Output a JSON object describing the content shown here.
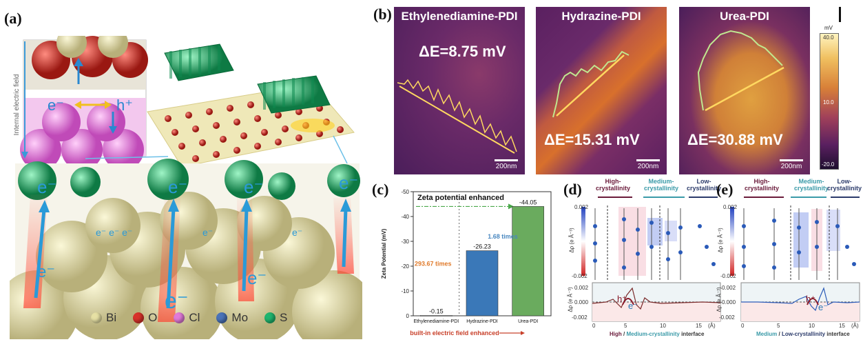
{
  "panel_labels": {
    "a": "(a)",
    "b": "(b)",
    "c": "(c)",
    "d": "(d)",
    "e": "(e)"
  },
  "panel_a": {
    "field_label": "Internal electric field",
    "electron": "e⁻",
    "hole": "h⁺",
    "legend": [
      {
        "symbol": "Bi",
        "color": "#e6e0a4"
      },
      {
        "symbol": "O",
        "color": "#d8322a"
      },
      {
        "symbol": "Cl",
        "color": "#e07ad8"
      },
      {
        "symbol": "Mo",
        "color": "#4a73b8"
      },
      {
        "symbol": "S",
        "color": "#1fb56e"
      }
    ]
  },
  "panel_b": {
    "images": [
      {
        "title": "Ethylenediamine-PDI",
        "delta": "ΔE=8.75 mV",
        "scalebar": "200nm"
      },
      {
        "title": "Hydrazine-PDI",
        "delta": "ΔE=15.31 mV",
        "scalebar": "200nm"
      },
      {
        "title": "Urea-PDI",
        "delta": "ΔE=30.88 mV",
        "scalebar": "200nm"
      }
    ],
    "colorbar": {
      "unit": "mV",
      "max": "40.0",
      "mid": "10.0",
      "min": "-20.0"
    }
  },
  "chart_data": {
    "type": "bar",
    "title": "Zeta potential enhanced",
    "ylabel": "Zeta Potential (mV)",
    "xlabel": "built-in electric field enhanced",
    "categories": [
      "Ethylenediamine-PDI",
      "Hydrazine-PDI",
      "Urea-PDI"
    ],
    "values": [
      -0.15,
      -26.23,
      -44.05
    ],
    "value_labels": [
      "-0.15",
      "-26.23",
      "-44.05"
    ],
    "bar_colors": [
      "#d0d0d0",
      "#3a78b8",
      "#6aab5e"
    ],
    "ylim": [
      0,
      -50
    ],
    "yticks": [
      "0",
      "-10",
      "-20",
      "-30",
      "-40",
      "-50"
    ],
    "annotations": [
      {
        "text": "293.67 times",
        "color": "#e07a2a"
      },
      {
        "text": "1.68 times",
        "color": "#4a88c0"
      }
    ]
  },
  "panel_d": {
    "regions": [
      "High-\ncrystallinity",
      "Medium-\ncrystallinity",
      "Low-\ncrystallinity"
    ],
    "cbar": [
      "0.002",
      "-0.002"
    ],
    "ylab_top": "Δρ (e Å⁻³)",
    "ylab_bottom": "Δρ (e Å⁻³)",
    "yticks_bottom": [
      "0.002",
      "0.000",
      "-0.002"
    ],
    "xticks": [
      "0",
      "5",
      "10",
      "15",
      "(Å)"
    ],
    "xlabel": [
      "High",
      "/",
      "Medium-crystallinity",
      "interface"
    ],
    "carriers": [
      "h⁺",
      "e⁻"
    ]
  },
  "panel_e": {
    "regions": [
      "High-\ncrystallinity",
      "Medium-\ncrystallinity",
      "Low-\ncrystallinity"
    ],
    "cbar": [
      "0.002",
      "-0.002"
    ],
    "ylab_top": "Δρ (e Å⁻³)",
    "ylab_bottom": "Δρ (e Å⁻³)",
    "yticks_bottom": [
      "0.002",
      "0.000",
      "-0.002"
    ],
    "xticks": [
      "0",
      "5",
      "10",
      "15",
      "(Å)"
    ],
    "xlabel": [
      "Medium",
      "/",
      "Low-crystallinity",
      "interface"
    ],
    "carriers": [
      "h⁺",
      "e⁻"
    ]
  }
}
